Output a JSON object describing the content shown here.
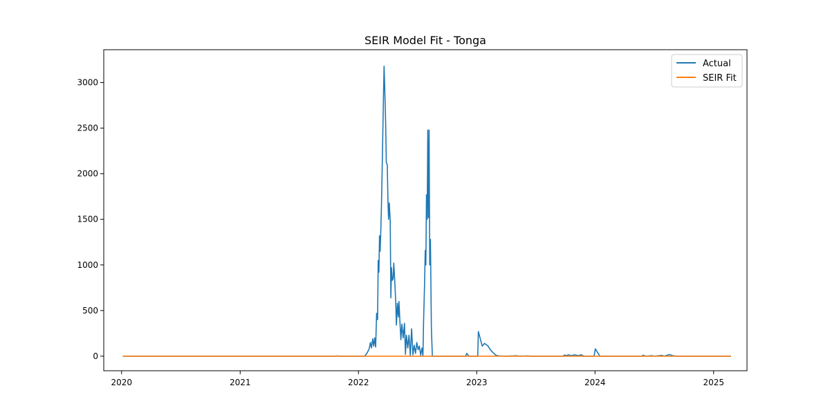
{
  "chart_data": {
    "type": "line",
    "title": "SEIR Model Fit - Tonga",
    "xlabel": "",
    "ylabel": "",
    "x_ticks": [
      "2020",
      "2021",
      "2022",
      "2023",
      "2024",
      "2025"
    ],
    "y_ticks": [
      0,
      500,
      1000,
      1500,
      2000,
      2500,
      3000
    ],
    "xlim": [
      "2019-11-07",
      "2025-04-14"
    ],
    "ylim": [
      -160,
      3360
    ],
    "grid": false,
    "legend": "top-right",
    "series": [
      {
        "name": "Actual",
        "color": "#1f77b4",
        "points": [
          [
            "2020-01-05",
            0
          ],
          [
            "2021-10-20",
            0
          ],
          [
            "2021-10-27",
            3
          ],
          [
            "2021-11-03",
            0
          ],
          [
            "2022-01-20",
            0
          ],
          [
            "2022-01-27",
            30
          ],
          [
            "2022-02-03",
            80
          ],
          [
            "2022-02-07",
            150
          ],
          [
            "2022-02-10",
            90
          ],
          [
            "2022-02-14",
            190
          ],
          [
            "2022-02-17",
            110
          ],
          [
            "2022-02-20",
            200
          ],
          [
            "2022-02-23",
            100
          ],
          [
            "2022-02-26",
            470
          ],
          [
            "2022-03-01",
            400
          ],
          [
            "2022-03-03",
            1050
          ],
          [
            "2022-03-05",
            920
          ],
          [
            "2022-03-07",
            1320
          ],
          [
            "2022-03-09",
            1150
          ],
          [
            "2022-03-11",
            1380
          ],
          [
            "2022-03-13",
            1650
          ],
          [
            "2022-03-16",
            2200
          ],
          [
            "2022-03-19",
            2800
          ],
          [
            "2022-03-21",
            3180
          ],
          [
            "2022-03-23",
            2950
          ],
          [
            "2022-03-26",
            2550
          ],
          [
            "2022-03-28",
            2120
          ],
          [
            "2022-03-31",
            2100
          ],
          [
            "2022-04-02",
            1700
          ],
          [
            "2022-04-04",
            1500
          ],
          [
            "2022-04-06",
            1680
          ],
          [
            "2022-04-09",
            1480
          ],
          [
            "2022-04-11",
            640
          ],
          [
            "2022-04-13",
            970
          ],
          [
            "2022-04-15",
            830
          ],
          [
            "2022-04-18",
            850
          ],
          [
            "2022-04-20",
            1020
          ],
          [
            "2022-04-23",
            830
          ],
          [
            "2022-04-26",
            600
          ],
          [
            "2022-04-28",
            340
          ],
          [
            "2022-05-01",
            580
          ],
          [
            "2022-05-04",
            430
          ],
          [
            "2022-05-06",
            600
          ],
          [
            "2022-05-09",
            380
          ],
          [
            "2022-05-12",
            180
          ],
          [
            "2022-05-15",
            350
          ],
          [
            "2022-05-19",
            200
          ],
          [
            "2022-05-23",
            360
          ],
          [
            "2022-05-26",
            20
          ],
          [
            "2022-05-29",
            230
          ],
          [
            "2022-06-02",
            90
          ],
          [
            "2022-06-06",
            230
          ],
          [
            "2022-06-10",
            10
          ],
          [
            "2022-06-14",
            300
          ],
          [
            "2022-06-18",
            15
          ],
          [
            "2022-06-22",
            120
          ],
          [
            "2022-06-26",
            30
          ],
          [
            "2022-06-30",
            150
          ],
          [
            "2022-07-04",
            70
          ],
          [
            "2022-07-08",
            110
          ],
          [
            "2022-07-12",
            10
          ],
          [
            "2022-07-16",
            90
          ],
          [
            "2022-07-19",
            0
          ],
          [
            "2022-07-21",
            380
          ],
          [
            "2022-07-24",
            780
          ],
          [
            "2022-07-26",
            1160
          ],
          [
            "2022-07-28",
            1000
          ],
          [
            "2022-07-30",
            1770
          ],
          [
            "2022-08-01",
            1500
          ],
          [
            "2022-08-03",
            2480
          ],
          [
            "2022-08-05",
            1520
          ],
          [
            "2022-08-07",
            2480
          ],
          [
            "2022-08-09",
            1000
          ],
          [
            "2022-08-11",
            1280
          ],
          [
            "2022-08-14",
            300
          ],
          [
            "2022-08-17",
            0
          ],
          [
            "2022-11-28",
            0
          ],
          [
            "2022-12-01",
            30
          ],
          [
            "2022-12-08",
            0
          ],
          [
            "2023-01-04",
            0
          ],
          [
            "2023-01-06",
            270
          ],
          [
            "2023-01-18",
            110
          ],
          [
            "2023-01-25",
            140
          ],
          [
            "2023-02-05",
            110
          ],
          [
            "2023-02-12",
            70
          ],
          [
            "2023-02-20",
            40
          ],
          [
            "2023-03-01",
            10
          ],
          [
            "2023-03-10",
            3
          ],
          [
            "2023-03-31",
            0
          ],
          [
            "2023-05-05",
            4
          ],
          [
            "2023-05-12",
            0
          ],
          [
            "2023-06-08",
            3
          ],
          [
            "2023-06-15",
            0
          ],
          [
            "2023-09-25",
            0
          ],
          [
            "2023-09-28",
            12
          ],
          [
            "2023-10-05",
            5
          ],
          [
            "2023-10-10",
            15
          ],
          [
            "2023-10-20",
            5
          ],
          [
            "2023-10-30",
            15
          ],
          [
            "2023-11-10",
            5
          ],
          [
            "2023-11-20",
            15
          ],
          [
            "2023-11-28",
            0
          ],
          [
            "2023-12-29",
            0
          ],
          [
            "2024-01-02",
            80
          ],
          [
            "2024-01-16",
            0
          ],
          [
            "2024-05-25",
            0
          ],
          [
            "2024-05-28",
            10
          ],
          [
            "2024-06-05",
            0
          ],
          [
            "2024-06-25",
            5
          ],
          [
            "2024-07-02",
            0
          ],
          [
            "2024-07-25",
            8
          ],
          [
            "2024-08-01",
            0
          ],
          [
            "2024-08-18",
            18
          ],
          [
            "2024-08-28",
            5
          ],
          [
            "2024-09-10",
            0
          ],
          [
            "2025-02-24",
            0
          ]
        ]
      },
      {
        "name": "SEIR Fit",
        "color": "#ff7f0e",
        "points": [
          [
            "2020-01-05",
            0
          ],
          [
            "2025-02-24",
            0
          ]
        ]
      }
    ]
  }
}
